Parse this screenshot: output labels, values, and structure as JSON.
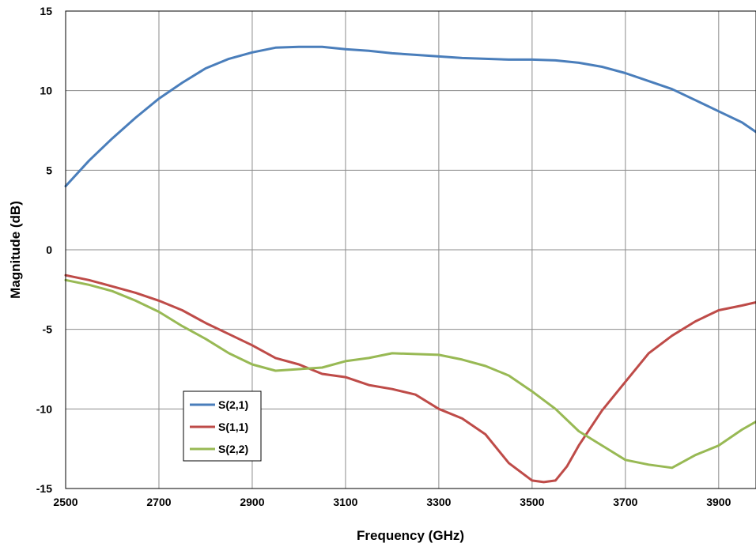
{
  "chart_data": {
    "type": "line",
    "title": "",
    "xlabel": "Frequency (GHz)",
    "ylabel": "Magnitude (dB)",
    "xlim": [
      2500,
      3980
    ],
    "ylim": [
      -15,
      15
    ],
    "xticks": [
      2500,
      2700,
      2900,
      3100,
      3300,
      3500,
      3700,
      3900
    ],
    "yticks": [
      -15,
      -10,
      -5,
      0,
      5,
      10,
      15
    ],
    "grid": true,
    "legend_position": "lower-left",
    "series": [
      {
        "name": "S(2,1)",
        "color": "#4a7ebb",
        "x": [
          2500,
          2550,
          2600,
          2650,
          2700,
          2750,
          2800,
          2850,
          2900,
          2950,
          3000,
          3050,
          3100,
          3150,
          3200,
          3250,
          3300,
          3350,
          3400,
          3450,
          3500,
          3550,
          3600,
          3650,
          3700,
          3750,
          3800,
          3850,
          3900,
          3950,
          3980
        ],
        "y": [
          4.0,
          5.6,
          7.0,
          8.3,
          9.5,
          10.5,
          11.4,
          12.0,
          12.4,
          12.7,
          12.75,
          12.75,
          12.6,
          12.5,
          12.35,
          12.25,
          12.15,
          12.05,
          12.0,
          11.95,
          11.95,
          11.9,
          11.75,
          11.5,
          11.1,
          10.6,
          10.1,
          9.4,
          8.7,
          8.0,
          7.4
        ]
      },
      {
        "name": "S(1,1)",
        "color": "#be4b48",
        "x": [
          2500,
          2550,
          2600,
          2650,
          2700,
          2750,
          2800,
          2850,
          2900,
          2950,
          3000,
          3050,
          3100,
          3150,
          3200,
          3250,
          3300,
          3350,
          3400,
          3450,
          3500,
          3525,
          3550,
          3575,
          3600,
          3650,
          3700,
          3750,
          3800,
          3850,
          3900,
          3950,
          3980
        ],
        "y": [
          -1.6,
          -1.9,
          -2.3,
          -2.7,
          -3.2,
          -3.8,
          -4.6,
          -5.3,
          -6.0,
          -6.8,
          -7.2,
          -7.8,
          -8.0,
          -8.5,
          -8.75,
          -9.1,
          -10.0,
          -10.6,
          -11.6,
          -13.4,
          -14.5,
          -14.6,
          -14.5,
          -13.6,
          -12.3,
          -10.1,
          -8.3,
          -6.5,
          -5.4,
          -4.5,
          -3.8,
          -3.5,
          -3.3
        ]
      },
      {
        "name": "S(2,2)",
        "color": "#98b954",
        "x": [
          2500,
          2550,
          2600,
          2650,
          2700,
          2750,
          2800,
          2850,
          2900,
          2950,
          3000,
          3050,
          3100,
          3150,
          3200,
          3250,
          3300,
          3350,
          3400,
          3450,
          3500,
          3550,
          3600,
          3650,
          3700,
          3750,
          3800,
          3850,
          3900,
          3950,
          3980
        ],
        "y": [
          -1.9,
          -2.2,
          -2.6,
          -3.2,
          -3.9,
          -4.8,
          -5.6,
          -6.5,
          -7.2,
          -7.6,
          -7.5,
          -7.4,
          -7.0,
          -6.8,
          -6.5,
          -6.55,
          -6.6,
          -6.9,
          -7.3,
          -7.9,
          -8.9,
          -10.0,
          -11.4,
          -12.3,
          -13.2,
          -13.5,
          -13.7,
          -12.9,
          -12.3,
          -11.3,
          -10.8
        ]
      }
    ]
  }
}
